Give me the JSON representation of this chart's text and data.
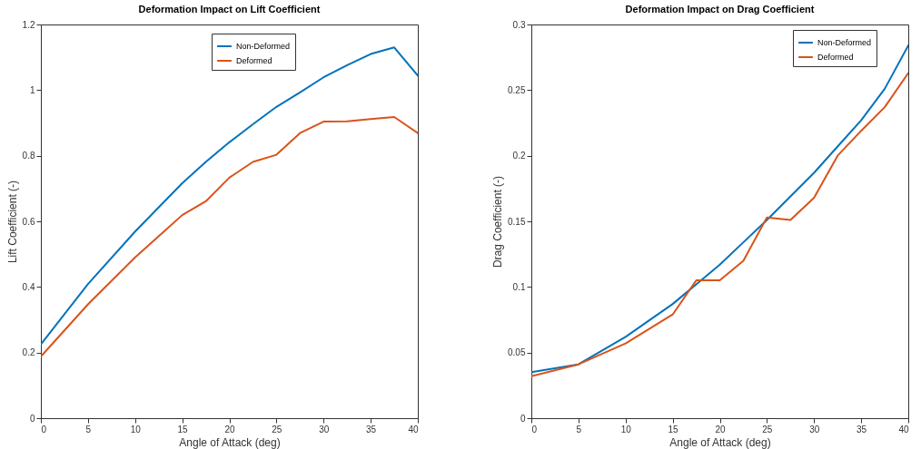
{
  "chart_data": [
    {
      "type": "line",
      "title": "Deformation Impact on Lift Coefficient",
      "xlabel": "Angle of Attack (deg)",
      "ylabel": "Lift Coefficient (-)",
      "x": [
        0,
        5,
        10,
        15,
        17.5,
        20,
        22.5,
        25,
        27.5,
        30,
        32.5,
        35,
        37.5,
        40
      ],
      "series": [
        {
          "name": "Non-Deformed",
          "color": "#0072bd",
          "values": [
            0.225,
            0.409,
            0.569,
            0.716,
            0.781,
            0.841,
            0.896,
            0.949,
            0.993,
            1.039,
            1.076,
            1.11,
            1.13,
            1.044
          ]
        },
        {
          "name": "Deformed",
          "color": "#d95319",
          "values": [
            0.188,
            0.347,
            0.49,
            0.619,
            0.661,
            0.733,
            0.781,
            0.803,
            0.869,
            0.904,
            0.905,
            0.912,
            0.918,
            0.869
          ]
        }
      ],
      "xlim": [
        0,
        40
      ],
      "xticks": [
        0,
        5,
        10,
        15,
        20,
        25,
        30,
        35,
        40
      ],
      "ylim": [
        0,
        1.2
      ],
      "yticks": [
        0,
        0.2,
        0.4,
        0.6,
        0.8,
        1,
        1.2
      ],
      "grid": false,
      "legend": "top right",
      "line_style": "solid"
    },
    {
      "type": "line",
      "title": "Deformation Impact on Drag Coefficient",
      "xlabel": "Angle of Attack (deg)",
      "ylabel": "Drag Coefficient (-)",
      "x": [
        0,
        5,
        10,
        15,
        17.5,
        20,
        22.5,
        25,
        27.5,
        30,
        32.5,
        35,
        37.5,
        40
      ],
      "series": [
        {
          "name": "Non-Deformed",
          "color": "#0072bd",
          "values": [
            0.035,
            0.041,
            0.062,
            0.087,
            0.102,
            0.117,
            0.134,
            0.151,
            0.169,
            0.187,
            0.207,
            0.227,
            0.251,
            0.284
          ]
        },
        {
          "name": "Deformed",
          "color": "#d95319",
          "values": [
            0.032,
            0.041,
            0.057,
            0.079,
            0.105,
            0.105,
            0.12,
            0.153,
            0.151,
            0.168,
            0.2,
            0.219,
            0.237,
            0.263
          ]
        }
      ],
      "xlim": [
        0,
        40
      ],
      "xticks": [
        0,
        5,
        10,
        15,
        20,
        25,
        30,
        35,
        40
      ],
      "ylim": [
        0,
        0.3
      ],
      "yticks": [
        0,
        0.05,
        0.1,
        0.15,
        0.2,
        0.25,
        0.3
      ],
      "grid": false,
      "legend": "top right",
      "line_style": "solid"
    }
  ]
}
